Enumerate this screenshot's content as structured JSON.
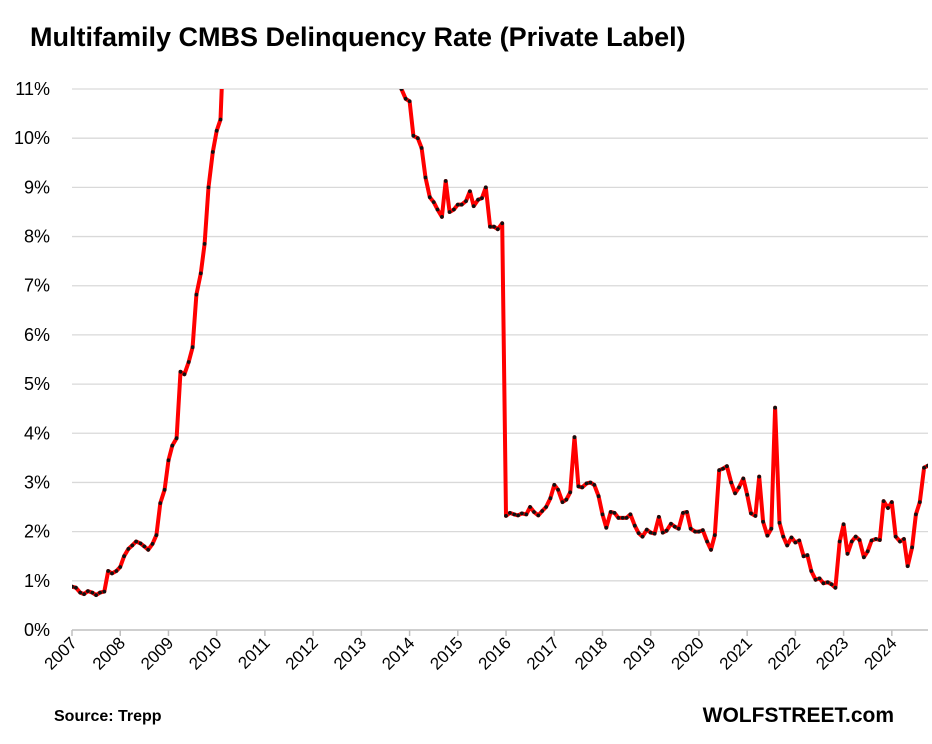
{
  "title": "Multifamily CMBS Delinquency Rate (Private Label)",
  "source": "Source: Trepp",
  "brand": "WOLFSTREET.com",
  "colors": {
    "line": "#ff0000",
    "marker": "#111111",
    "grid": "#d9d9d9"
  },
  "chart_data": {
    "type": "line",
    "title": "Multifamily CMBS Delinquency Rate (Private Label)",
    "xlabel": "",
    "ylabel": "",
    "ylim": [
      0,
      11
    ],
    "xlim": [
      2007,
      2024.75
    ],
    "y_tick_labels": [
      "0%",
      "1%",
      "2%",
      "3%",
      "4%",
      "5%",
      "6%",
      "7%",
      "8%",
      "9%",
      "10%",
      "11%"
    ],
    "x_tick_labels": [
      "2007",
      "2008",
      "2009",
      "2010",
      "2011",
      "2012",
      "2013",
      "2014",
      "2015",
      "2016",
      "2017",
      "2018",
      "2019",
      "2020",
      "2021",
      "2022",
      "2023",
      "2024"
    ],
    "grid": true,
    "legend": "none",
    "series": [
      {
        "points": [
          [
            2007.0,
            0.88
          ],
          [
            2007.08,
            0.86
          ],
          [
            2007.17,
            0.76
          ],
          [
            2007.25,
            0.73
          ],
          [
            2007.33,
            0.79
          ],
          [
            2007.42,
            0.76
          ],
          [
            2007.5,
            0.71
          ],
          [
            2007.58,
            0.76
          ],
          [
            2007.67,
            0.78
          ],
          [
            2007.75,
            1.2
          ],
          [
            2007.83,
            1.15
          ],
          [
            2007.92,
            1.2
          ],
          [
            2008.0,
            1.28
          ],
          [
            2008.08,
            1.5
          ],
          [
            2008.17,
            1.65
          ],
          [
            2008.25,
            1.72
          ],
          [
            2008.33,
            1.8
          ],
          [
            2008.42,
            1.76
          ],
          [
            2008.5,
            1.7
          ],
          [
            2008.58,
            1.63
          ],
          [
            2008.67,
            1.75
          ],
          [
            2008.75,
            1.93
          ],
          [
            2008.83,
            2.58
          ],
          [
            2008.92,
            2.85
          ],
          [
            2009.0,
            3.45
          ],
          [
            2009.08,
            3.75
          ],
          [
            2009.17,
            3.9
          ],
          [
            2009.25,
            5.25
          ],
          [
            2009.33,
            5.2
          ],
          [
            2009.42,
            5.45
          ],
          [
            2009.5,
            5.75
          ],
          [
            2009.58,
            6.82
          ],
          [
            2009.67,
            7.25
          ],
          [
            2009.75,
            7.85
          ],
          [
            2009.83,
            9.0
          ],
          [
            2009.92,
            9.72
          ],
          [
            2010.0,
            10.15
          ],
          [
            2010.08,
            10.38
          ],
          [
            2010.12,
            11.4
          ],
          [
            2013.72,
            11.4
          ],
          [
            2013.83,
            11.0
          ],
          [
            2013.92,
            10.8
          ],
          [
            2014.0,
            10.75
          ],
          [
            2014.08,
            10.05
          ],
          [
            2014.17,
            10.0
          ],
          [
            2014.25,
            9.8
          ],
          [
            2014.33,
            9.2
          ],
          [
            2014.42,
            8.8
          ],
          [
            2014.5,
            8.7
          ],
          [
            2014.58,
            8.55
          ],
          [
            2014.67,
            8.4
          ],
          [
            2014.75,
            9.13
          ],
          [
            2014.83,
            8.5
          ],
          [
            2014.92,
            8.55
          ],
          [
            2015.0,
            8.65
          ],
          [
            2015.08,
            8.65
          ],
          [
            2015.17,
            8.72
          ],
          [
            2015.25,
            8.92
          ],
          [
            2015.33,
            8.62
          ],
          [
            2015.42,
            8.75
          ],
          [
            2015.5,
            8.78
          ],
          [
            2015.58,
            9.0
          ],
          [
            2015.67,
            8.2
          ],
          [
            2015.75,
            8.2
          ],
          [
            2015.83,
            8.15
          ],
          [
            2015.92,
            8.27
          ],
          [
            2016.0,
            2.32
          ],
          [
            2016.08,
            2.38
          ],
          [
            2016.17,
            2.35
          ],
          [
            2016.25,
            2.33
          ],
          [
            2016.33,
            2.37
          ],
          [
            2016.42,
            2.35
          ],
          [
            2016.5,
            2.5
          ],
          [
            2016.58,
            2.4
          ],
          [
            2016.67,
            2.33
          ],
          [
            2016.75,
            2.42
          ],
          [
            2016.83,
            2.5
          ],
          [
            2016.92,
            2.68
          ],
          [
            2017.0,
            2.95
          ],
          [
            2017.08,
            2.85
          ],
          [
            2017.17,
            2.6
          ],
          [
            2017.25,
            2.65
          ],
          [
            2017.33,
            2.8
          ],
          [
            2017.42,
            3.92
          ],
          [
            2017.5,
            2.92
          ],
          [
            2017.58,
            2.9
          ],
          [
            2017.67,
            2.98
          ],
          [
            2017.75,
            3.0
          ],
          [
            2017.83,
            2.95
          ],
          [
            2017.92,
            2.72
          ],
          [
            2018.0,
            2.35
          ],
          [
            2018.08,
            2.08
          ],
          [
            2018.17,
            2.4
          ],
          [
            2018.25,
            2.38
          ],
          [
            2018.33,
            2.28
          ],
          [
            2018.42,
            2.28
          ],
          [
            2018.5,
            2.28
          ],
          [
            2018.58,
            2.35
          ],
          [
            2018.67,
            2.12
          ],
          [
            2018.75,
            1.97
          ],
          [
            2018.83,
            1.9
          ],
          [
            2018.92,
            2.04
          ],
          [
            2019.0,
            1.98
          ],
          [
            2019.08,
            1.96
          ],
          [
            2019.17,
            2.3
          ],
          [
            2019.25,
            1.98
          ],
          [
            2019.33,
            2.02
          ],
          [
            2019.42,
            2.16
          ],
          [
            2019.5,
            2.1
          ],
          [
            2019.58,
            2.06
          ],
          [
            2019.67,
            2.38
          ],
          [
            2019.75,
            2.4
          ],
          [
            2019.83,
            2.06
          ],
          [
            2019.92,
            2.0
          ],
          [
            2020.0,
            2.0
          ],
          [
            2020.08,
            2.03
          ],
          [
            2020.17,
            1.8
          ],
          [
            2020.25,
            1.63
          ],
          [
            2020.33,
            1.93
          ],
          [
            2020.42,
            3.25
          ],
          [
            2020.5,
            3.28
          ],
          [
            2020.58,
            3.33
          ],
          [
            2020.67,
            3.0
          ],
          [
            2020.75,
            2.78
          ],
          [
            2020.83,
            2.9
          ],
          [
            2020.92,
            3.08
          ],
          [
            2021.0,
            2.75
          ],
          [
            2021.08,
            2.37
          ],
          [
            2021.17,
            2.32
          ],
          [
            2021.25,
            3.12
          ],
          [
            2021.33,
            2.2
          ],
          [
            2021.42,
            1.92
          ],
          [
            2021.5,
            2.06
          ],
          [
            2021.58,
            4.52
          ],
          [
            2021.67,
            2.18
          ],
          [
            2021.75,
            1.9
          ],
          [
            2021.83,
            1.72
          ],
          [
            2021.92,
            1.88
          ],
          [
            2022.0,
            1.78
          ],
          [
            2022.08,
            1.82
          ],
          [
            2022.17,
            1.5
          ],
          [
            2022.25,
            1.52
          ],
          [
            2022.33,
            1.2
          ],
          [
            2022.42,
            1.02
          ],
          [
            2022.5,
            1.05
          ],
          [
            2022.58,
            0.95
          ],
          [
            2022.67,
            0.97
          ],
          [
            2022.75,
            0.93
          ],
          [
            2022.83,
            0.86
          ],
          [
            2022.92,
            1.8
          ],
          [
            2023.0,
            2.15
          ],
          [
            2023.08,
            1.55
          ],
          [
            2023.17,
            1.8
          ],
          [
            2023.25,
            1.9
          ],
          [
            2023.33,
            1.83
          ],
          [
            2023.42,
            1.48
          ],
          [
            2023.5,
            1.6
          ],
          [
            2023.58,
            1.82
          ],
          [
            2023.67,
            1.85
          ],
          [
            2023.75,
            1.83
          ],
          [
            2023.83,
            2.62
          ],
          [
            2023.92,
            2.48
          ],
          [
            2024.0,
            2.6
          ],
          [
            2024.08,
            1.9
          ],
          [
            2024.17,
            1.8
          ],
          [
            2024.25,
            1.85
          ],
          [
            2024.33,
            1.3
          ],
          [
            2024.42,
            1.68
          ],
          [
            2024.5,
            2.35
          ],
          [
            2024.58,
            2.6
          ],
          [
            2024.67,
            3.3
          ],
          [
            2024.75,
            3.34
          ]
        ]
      }
    ]
  }
}
